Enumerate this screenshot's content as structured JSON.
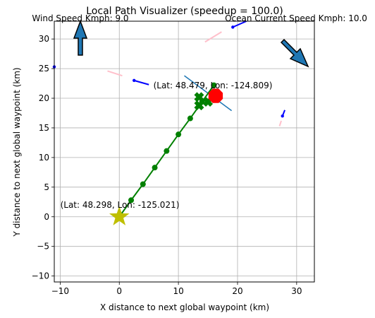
{
  "chart_data": {
    "type": "scatter",
    "title": "Local Path Visualizer (speedup = 100.0)",
    "xlabel": "X distance to next global waypoint (km)",
    "ylabel": "Y distance to next global waypoint (km)",
    "xlim": [
      -11,
      33
    ],
    "ylim": [
      -11,
      33
    ],
    "xticks": [
      -10,
      0,
      10,
      20,
      30
    ],
    "yticks": [
      -10,
      -5,
      0,
      5,
      10,
      15,
      20,
      25,
      30
    ],
    "grid": true,
    "colors": {
      "path": "#008000",
      "boat": "#ff0000",
      "start_marker": "#bfbf00",
      "heading_line": "#1f77b4",
      "ais_ship": "#0000ff",
      "ais_trail": "#ffc0cb",
      "arrow_fill": "#1f77b4"
    },
    "wind_label": "Wind Speed Kmph: 9.0",
    "current_label": "Ocean Current Speed Kmph: 10.0",
    "start_label": "(Lat: 48.298, Lon: -125.021)",
    "boat_label": "(Lat: 48.479, Lon: -124.809)",
    "path": {
      "x": [
        0,
        2,
        4,
        6,
        8,
        10,
        12,
        14,
        16
      ],
      "y": [
        0,
        2.8,
        5.5,
        8.3,
        11.1,
        13.9,
        16.6,
        19.4,
        22.2
      ]
    },
    "waypoint_markers": [
      [
        13.5,
        20.2
      ],
      [
        13.5,
        18.8
      ],
      [
        15,
        19.4
      ]
    ],
    "boat_position": [
      16.3,
      20.4
    ],
    "heading_line": [
      [
        11,
        23.8
      ],
      [
        19,
        17.9
      ]
    ],
    "ais_ships": [
      {
        "x": -11,
        "y": 25.3,
        "trail": [
          [
            -11,
            25.3
          ],
          [
            -12,
            25.5
          ]
        ]
      },
      {
        "x": 2.5,
        "y": 23,
        "heading": [
          [
            2.5,
            23
          ],
          [
            5,
            22.3
          ]
        ],
        "trail": [
          [
            -2,
            24.6
          ],
          [
            0.5,
            23.8
          ]
        ]
      },
      {
        "x": 19.2,
        "y": 32,
        "heading": [
          [
            19.2,
            32
          ],
          [
            21.5,
            33
          ]
        ],
        "trail": [
          [
            14.5,
            29.5
          ],
          [
            17.3,
            31.2
          ]
        ]
      },
      {
        "x": 27.6,
        "y": 17,
        "heading": [
          [
            27.6,
            17
          ],
          [
            28,
            18
          ]
        ],
        "trail": [
          [
            27.1,
            15.3
          ],
          [
            27.4,
            16.2
          ]
        ]
      }
    ]
  }
}
